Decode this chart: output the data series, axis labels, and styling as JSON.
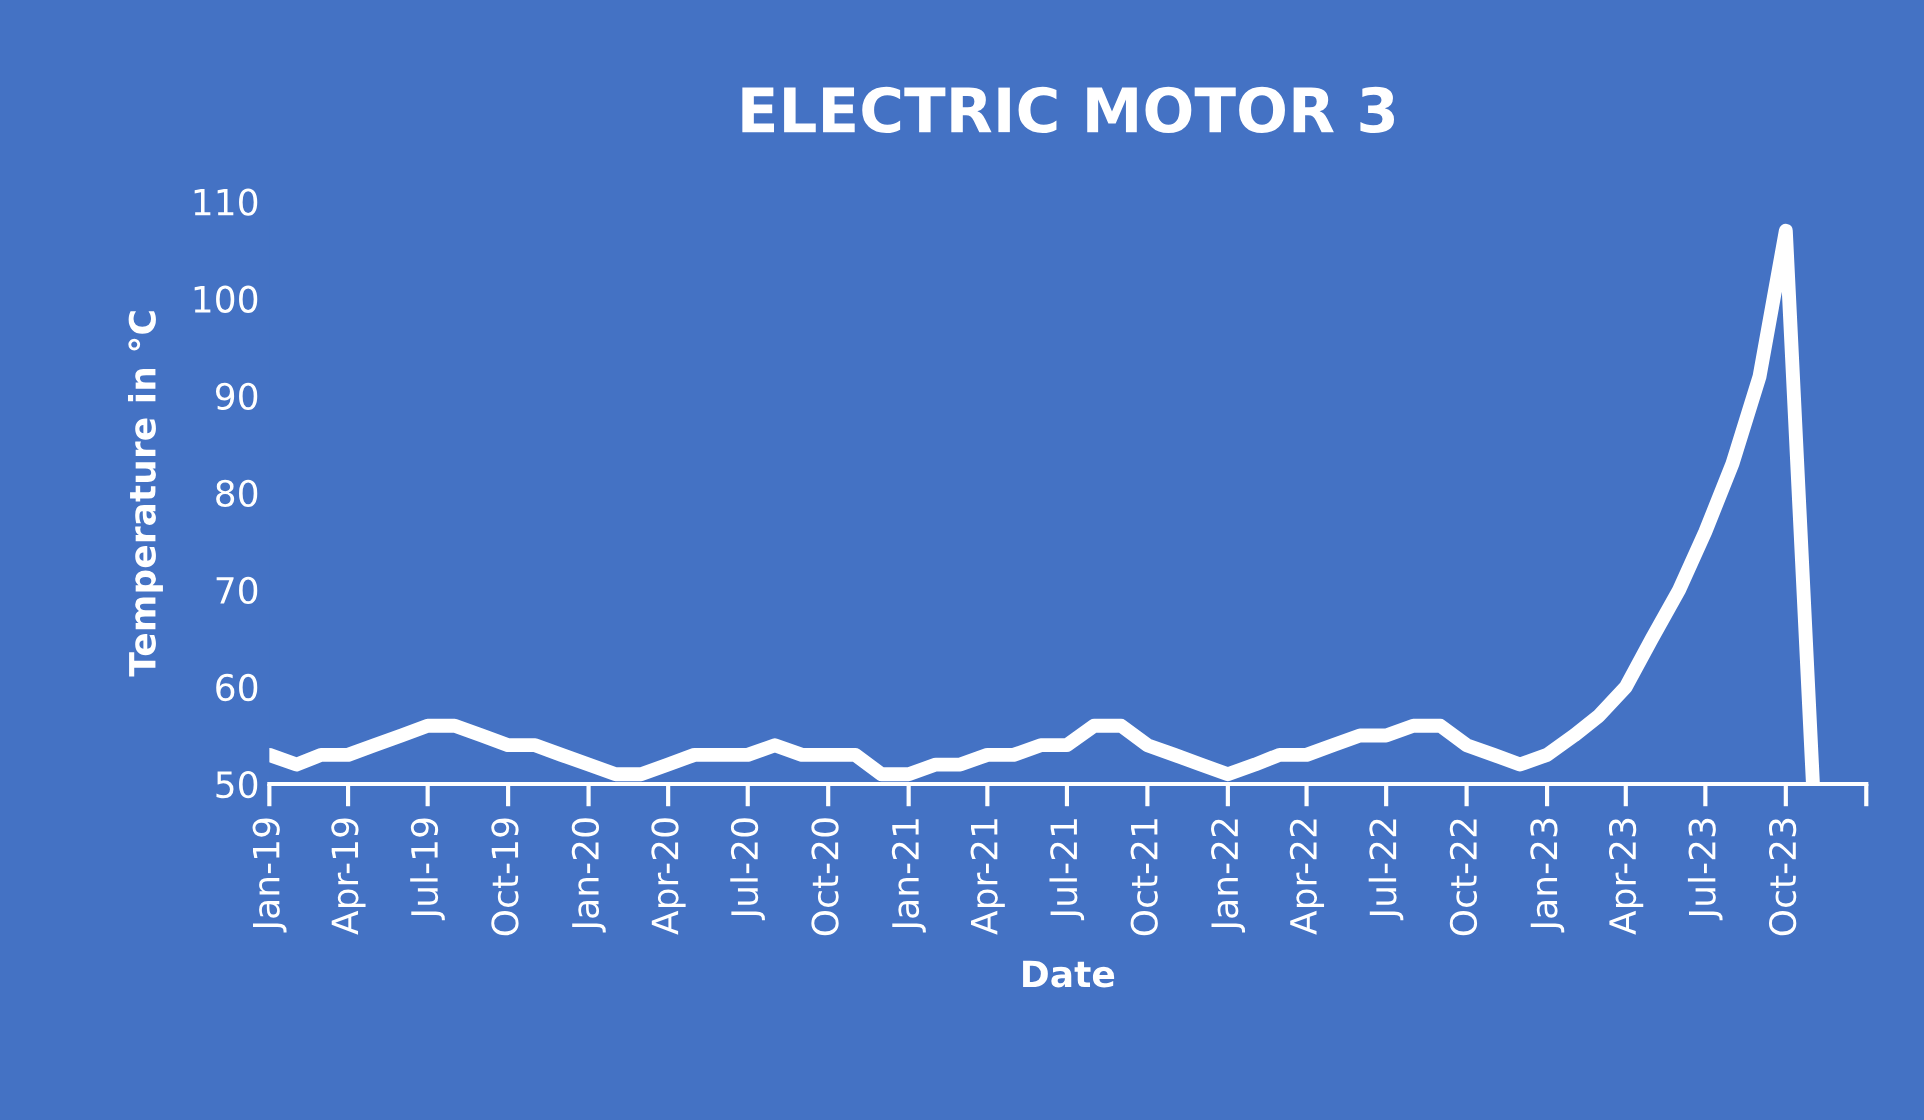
{
  "chart_data": {
    "type": "line",
    "title": "ELECTRIC MOTOR 3",
    "xlabel": "Date",
    "ylabel": "Temperature in °C",
    "x": [
      "2019-01",
      "2019-02",
      "2019-03",
      "2019-04",
      "2019-05",
      "2019-06",
      "2019-07",
      "2019-08",
      "2019-09",
      "2019-10",
      "2019-11",
      "2019-12",
      "2020-01",
      "2020-02",
      "2020-03",
      "2020-04",
      "2020-05",
      "2020-06",
      "2020-07",
      "2020-08",
      "2020-09",
      "2020-10",
      "2020-11",
      "2020-12",
      "2021-01",
      "2021-02",
      "2021-03",
      "2021-04",
      "2021-05",
      "2021-06",
      "2021-07",
      "2021-08",
      "2021-09",
      "2021-10",
      "2021-11",
      "2021-12",
      "2022-01",
      "2022-02",
      "2022-03",
      "2022-04",
      "2022-05",
      "2022-06",
      "2022-07",
      "2022-08",
      "2022-09",
      "2022-10",
      "2022-11",
      "2022-12",
      "2023-01",
      "2023-02",
      "2023-03",
      "2023-04",
      "2023-05",
      "2023-06",
      "2023-07",
      "2023-08",
      "2023-09",
      "2023-10",
      "2023-11"
    ],
    "series": [
      {
        "color": "#ffffff",
        "values": [
          53,
          52,
          53,
          53,
          54,
          55,
          56,
          56,
          55,
          54,
          54,
          53,
          52,
          51,
          51,
          52,
          53,
          53,
          53,
          54,
          53,
          53,
          53,
          51,
          51,
          52,
          52,
          53,
          53,
          54,
          54,
          56,
          56,
          54,
          53,
          52,
          51,
          52,
          53,
          53,
          54,
          55,
          55,
          56,
          56,
          54,
          53,
          52,
          53,
          55,
          57,
          60,
          65,
          70,
          76,
          83,
          92,
          107,
          50
        ]
      }
    ],
    "ylim": [
      50,
      110
    ],
    "yticks": [
      50,
      60,
      70,
      80,
      90,
      100,
      110
    ],
    "xlim": [
      "2019-01",
      "2024-01"
    ],
    "xticks": [
      {
        "value": "2019-01",
        "label": "Jan-19"
      },
      {
        "value": "2019-04",
        "label": "Apr-19"
      },
      {
        "value": "2019-07",
        "label": "Jul-19"
      },
      {
        "value": "2019-10",
        "label": "Oct-19"
      },
      {
        "value": "2020-01",
        "label": "Jan-20"
      },
      {
        "value": "2020-04",
        "label": "Apr-20"
      },
      {
        "value": "2020-07",
        "label": "Jul-20"
      },
      {
        "value": "2020-10",
        "label": "Oct-20"
      },
      {
        "value": "2021-01",
        "label": "Jan-21"
      },
      {
        "value": "2021-04",
        "label": "Apr-21"
      },
      {
        "value": "2021-07",
        "label": "Jul-21"
      },
      {
        "value": "2021-10",
        "label": "Oct-21"
      },
      {
        "value": "2022-01",
        "label": "Jan-22"
      },
      {
        "value": "2022-04",
        "label": "Apr-22"
      },
      {
        "value": "2022-07",
        "label": "Jul-22"
      },
      {
        "value": "2022-10",
        "label": "Oct-22"
      },
      {
        "value": "2023-01",
        "label": "Jan-23"
      },
      {
        "value": "2023-04",
        "label": "Apr-23"
      },
      {
        "value": "2023-07",
        "label": "Jul-23"
      },
      {
        "value": "2023-10",
        "label": "Oct-23"
      },
      {
        "value": "2024-01",
        "label": null
      }
    ],
    "grid": false,
    "legend": false,
    "marker": "none",
    "line_style": "solid"
  }
}
